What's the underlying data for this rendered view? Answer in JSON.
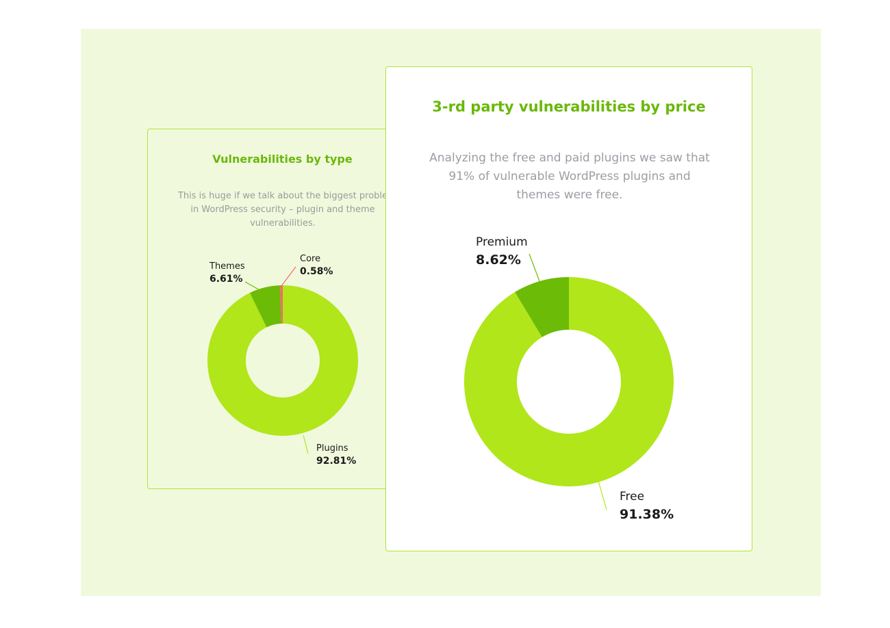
{
  "colors": {
    "background_panel": "#f1f9dd",
    "accent_title": "#6ab80a",
    "card_border": "#b3e33a",
    "plugins_free": "#b0e61a",
    "themes_premium": "#6cbb06",
    "core": "#f06b6b"
  },
  "chart_data": [
    {
      "type": "pie",
      "style": "donut",
      "title": "Vulnerabilities by type",
      "description": "This is huge if we talk about the biggest problems in WordPress security – plugin and theme vulnerabilities.",
      "description_lines": [
        "This is huge if we talk about the biggest proble",
        "in WordPress security – plugin and theme",
        "vulnerabilities."
      ],
      "slices": [
        {
          "label": "Plugins",
          "value": 92.81,
          "value_text": "92.81%",
          "color": "#b0e61a"
        },
        {
          "label": "Themes",
          "value": 6.61,
          "value_text": "6.61%",
          "color": "#6cbb06"
        },
        {
          "label": "Core",
          "value": 0.58,
          "value_text": "0.58%",
          "color": "#f06b6b"
        }
      ]
    },
    {
      "type": "pie",
      "style": "donut",
      "title": "3-rd party vulnerabilities by price",
      "description": "Analyzing the free and paid plugins we saw that 91% of vulnerable WordPress plugins and themes were free.",
      "description_lines": [
        "Analyzing the free and paid plugins we saw that",
        "91% of vulnerable WordPress plugins and",
        "themes were free."
      ],
      "slices": [
        {
          "label": "Free",
          "value": 91.38,
          "value_text": "91.38%",
          "color": "#b0e61a"
        },
        {
          "label": "Premium",
          "value": 8.62,
          "value_text": "8.62%",
          "color": "#6cbb06"
        }
      ]
    }
  ]
}
